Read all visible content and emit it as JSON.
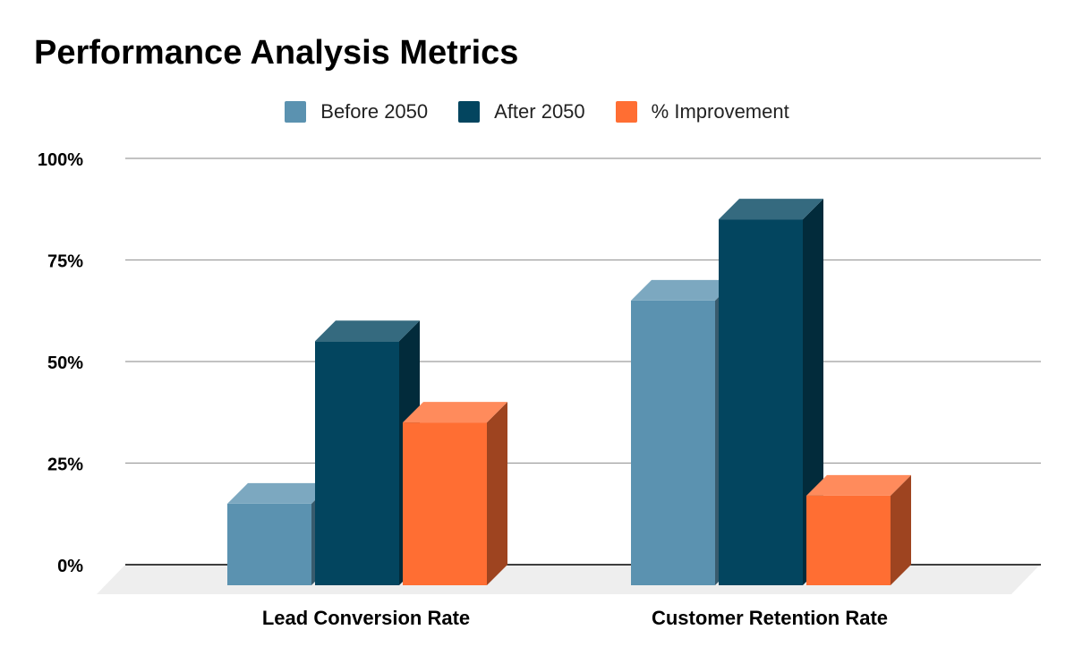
{
  "chart_data": {
    "type": "bar",
    "title": "Performance Analysis Metrics",
    "categories": [
      "Lead Conversion Rate",
      "Customer Retention Rate"
    ],
    "series": [
      {
        "name": "Before 2050",
        "values": [
          15,
          65
        ],
        "color": "#5b92b0"
      },
      {
        "name": "After 2050",
        "values": [
          55,
          85
        ],
        "color": "#03455f"
      },
      {
        "name": "% Improvement",
        "values": [
          35,
          17
        ],
        "color": "#ff6e33"
      }
    ],
    "ylim": [
      0,
      100
    ],
    "yticks": [
      "0%",
      "25%",
      "50%",
      "75%",
      "100%"
    ],
    "ytick_values": [
      0,
      25,
      50,
      75,
      100
    ],
    "legend_position": "top",
    "grid": true,
    "style": "3d"
  }
}
